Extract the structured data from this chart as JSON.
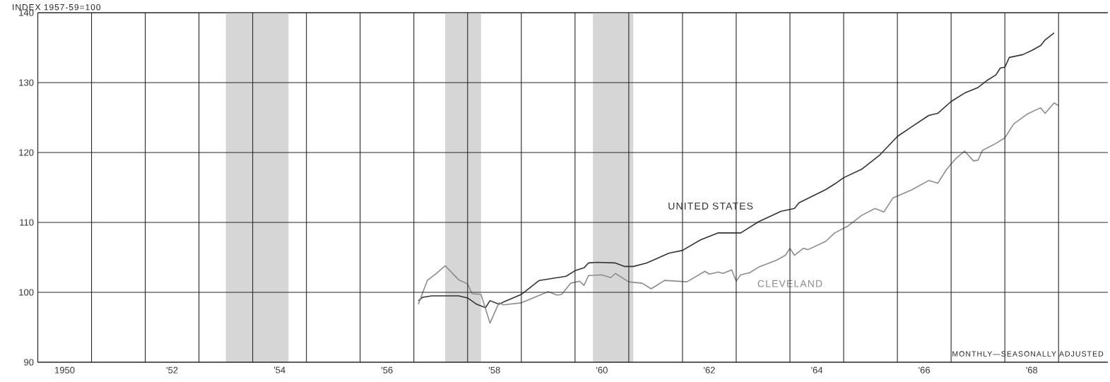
{
  "chart_data": {
    "type": "line",
    "ylabel": "INDEX 1957-59=100",
    "annotations": [
      "MONTHLY—SEASONALLY ADJUSTED"
    ],
    "xlim": [
      "1950-01",
      "1969-12"
    ],
    "ylim": [
      90,
      140
    ],
    "xticks": [
      {
        "value": "1950-07",
        "label": "1950"
      },
      {
        "value": "1952-07",
        "label": "'52"
      },
      {
        "value": "1954-07",
        "label": "'54"
      },
      {
        "value": "1956-07",
        "label": "'56"
      },
      {
        "value": "1958-07",
        "label": "'58"
      },
      {
        "value": "1960-07",
        "label": "'60"
      },
      {
        "value": "1962-07",
        "label": "'62"
      },
      {
        "value": "1964-07",
        "label": "'64"
      },
      {
        "value": "1966-07",
        "label": "'66"
      },
      {
        "value": "1968-07",
        "label": "'68"
      },
      {
        "value": "1951-01",
        "label": null
      },
      {
        "value": "1952-01",
        "label": null
      },
      {
        "value": "1953-01",
        "label": null
      },
      {
        "value": "1954-01",
        "label": null
      },
      {
        "value": "1955-01",
        "label": null
      },
      {
        "value": "1956-01",
        "label": null
      },
      {
        "value": "1957-01",
        "label": null
      },
      {
        "value": "1958-01",
        "label": null
      },
      {
        "value": "1959-01",
        "label": null
      },
      {
        "value": "1960-01",
        "label": null
      },
      {
        "value": "1961-01",
        "label": null
      },
      {
        "value": "1962-01",
        "label": null
      },
      {
        "value": "1963-01",
        "label": null
      },
      {
        "value": "1964-01",
        "label": null
      },
      {
        "value": "1965-01",
        "label": null
      },
      {
        "value": "1966-01",
        "label": null
      },
      {
        "value": "1967-01",
        "label": null
      },
      {
        "value": "1968-01",
        "label": null
      },
      {
        "value": "1969-01",
        "label": null
      }
    ],
    "yticks": [
      90,
      100,
      110,
      120,
      130,
      140
    ],
    "grid": true,
    "bands": [
      {
        "axis": "x",
        "from": "1953-07",
        "to": "1954-09",
        "color": "#d6d6d6"
      },
      {
        "axis": "x",
        "from": "1957-08",
        "to": "1958-04",
        "color": "#d6d6d6"
      },
      {
        "axis": "x",
        "from": "1960-05",
        "to": "1961-02",
        "color": "#d6d6d6"
      }
    ],
    "series": [
      {
        "name": "UNITED STATES",
        "color": "#333333",
        "x": [
          "1957-02",
          "1957-03",
          "1957-05",
          "1957-11",
          "1958-01",
          "1958-03",
          "1958-05",
          "1958-06",
          "1958-08",
          "1958-09",
          "1959-01",
          "1959-02",
          "1959-05",
          "1959-08",
          "1959-11",
          "1960-01",
          "1960-03",
          "1960-04",
          "1960-06",
          "1960-10",
          "1960-12",
          "1961-02",
          "1961-05",
          "1961-10",
          "1962-01",
          "1962-05",
          "1962-09",
          "1963-02",
          "1963-06",
          "1963-11",
          "1964-02",
          "1964-03",
          "1964-09",
          "1964-11",
          "1965-01",
          "1965-05",
          "1965-09",
          "1966-01",
          "1966-04",
          "1966-08",
          "1966-10",
          "1967-01",
          "1967-04",
          "1967-07",
          "1967-09",
          "1967-11",
          "1967-12",
          "1968-01",
          "1968-02",
          "1968-05",
          "1968-07",
          "1968-09",
          "1968-10",
          "1968-12"
        ],
        "values": [
          98.8,
          99.3,
          99.5,
          99.5,
          99.2,
          98.3,
          97.8,
          98.8,
          98.3,
          98.6,
          99.7,
          100.2,
          101.7,
          102.0,
          102.3,
          103.1,
          103.5,
          104.2,
          104.3,
          104.2,
          103.7,
          103.7,
          104.2,
          105.6,
          106.0,
          107.5,
          108.5,
          108.5,
          110.1,
          111.6,
          112.0,
          112.8,
          114.7,
          115.5,
          116.4,
          117.6,
          119.6,
          122.3,
          123.6,
          125.3,
          125.6,
          127.3,
          128.5,
          129.3,
          130.3,
          131.1,
          132.1,
          132.2,
          133.6,
          134.0,
          134.6,
          135.3,
          136.1,
          137.1
        ]
      },
      {
        "name": "CLEVELAND",
        "color": "#8c8c8c",
        "x": [
          "1957-02",
          "1957-04",
          "1957-06",
          "1957-08",
          "1957-11",
          "1958-01",
          "1958-02",
          "1958-04",
          "1958-06",
          "1958-08",
          "1958-09",
          "1959-01",
          "1959-04",
          "1959-07",
          "1959-09",
          "1959-10",
          "1959-12",
          "1960-02",
          "1960-03",
          "1960-04",
          "1960-07",
          "1960-09",
          "1960-10",
          "1961-01",
          "1961-04",
          "1961-06",
          "1961-09",
          "1962-02",
          "1962-06",
          "1962-07",
          "1962-09",
          "1962-10",
          "1962-12",
          "1963-01",
          "1963-02",
          "1963-04",
          "1963-06",
          "1963-10",
          "1963-12",
          "1964-01",
          "1964-02",
          "1964-04",
          "1964-05",
          "1964-09",
          "1964-11",
          "1965-02",
          "1965-05",
          "1965-08",
          "1965-10",
          "1965-12",
          "1966-04",
          "1966-08",
          "1966-10",
          "1966-12",
          "1967-02",
          "1967-04",
          "1967-06",
          "1967-07",
          "1967-08",
          "1967-11",
          "1968-01",
          "1968-03",
          "1968-06",
          "1968-09",
          "1968-10",
          "1968-12",
          "1969-01"
        ],
        "values": [
          98.3,
          101.7,
          102.7,
          103.8,
          101.8,
          101.2,
          99.8,
          99.7,
          95.6,
          98.5,
          98.2,
          98.5,
          99.3,
          100.1,
          99.6,
          99.7,
          101.3,
          101.6,
          101.0,
          102.4,
          102.5,
          102.1,
          102.7,
          101.5,
          101.3,
          100.5,
          101.7,
          101.5,
          103.0,
          102.6,
          102.9,
          102.7,
          103.2,
          101.6,
          102.5,
          102.8,
          103.6,
          104.6,
          105.3,
          106.3,
          105.3,
          106.3,
          106.1,
          107.3,
          108.5,
          109.5,
          111.0,
          112.0,
          111.5,
          113.5,
          114.6,
          116.0,
          115.6,
          117.6,
          119.1,
          120.2,
          118.8,
          118.9,
          120.3,
          121.3,
          122.1,
          124.1,
          125.5,
          126.4,
          125.6,
          127.1,
          126.7
        ]
      }
    ]
  }
}
